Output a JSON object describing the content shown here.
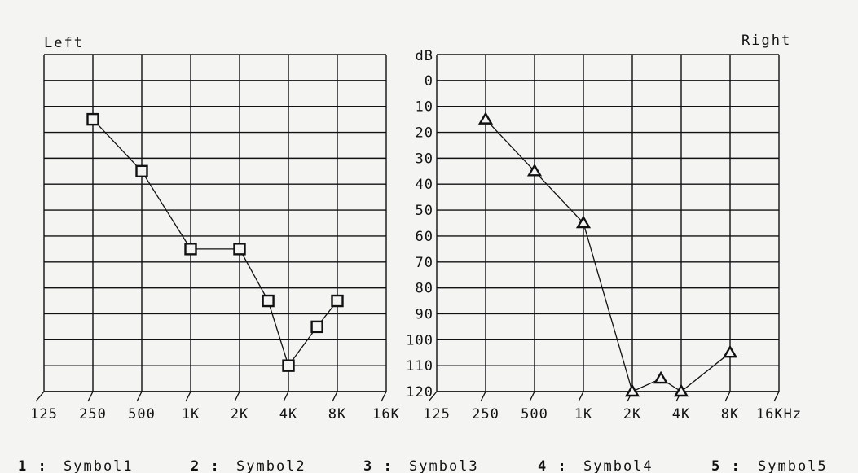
{
  "chart_data": [
    {
      "type": "line",
      "side_label": "Left",
      "marker": "square",
      "x": [
        "250",
        "500",
        "1K",
        "2K",
        "3K",
        "4K",
        "6K",
        "8K"
      ],
      "values": [
        15,
        35,
        65,
        65,
        85,
        110,
        95,
        85
      ],
      "x_ticks": [
        "125",
        "250",
        "500",
        "1K",
        "2K",
        "4K",
        "8K",
        "16K"
      ],
      "y_ticks": [],
      "ylim": [
        -10,
        120
      ],
      "grid": true
    },
    {
      "type": "line",
      "side_label": "Right",
      "marker": "triangle",
      "unit_label": "dB",
      "x": [
        "250",
        "500",
        "1K",
        "2K",
        "3K",
        "4K",
        "8K"
      ],
      "values": [
        15,
        35,
        55,
        120,
        115,
        120,
        105
      ],
      "x_ticks": [
        "125",
        "250",
        "500",
        "1K",
        "2K",
        "4K",
        "8K",
        "16KHz"
      ],
      "y_ticks": [
        "0",
        "10",
        "20",
        "30",
        "40",
        "50",
        "60",
        "70",
        "80",
        "90",
        "100",
        "110",
        "120"
      ],
      "ylim": [
        -10,
        120
      ],
      "grid": true
    }
  ],
  "legend": [
    {
      "num": "1 :",
      "label": "Symbol1"
    },
    {
      "num": "2 :",
      "label": "Symbol2"
    },
    {
      "num": "3 :",
      "label": "Symbol3"
    },
    {
      "num": "4 :",
      "label": "Symbol4"
    },
    {
      "num": "5 :",
      "label": "Symbol5"
    }
  ],
  "colors": {
    "ink": "#111111",
    "paper": "#f4f4f2"
  }
}
